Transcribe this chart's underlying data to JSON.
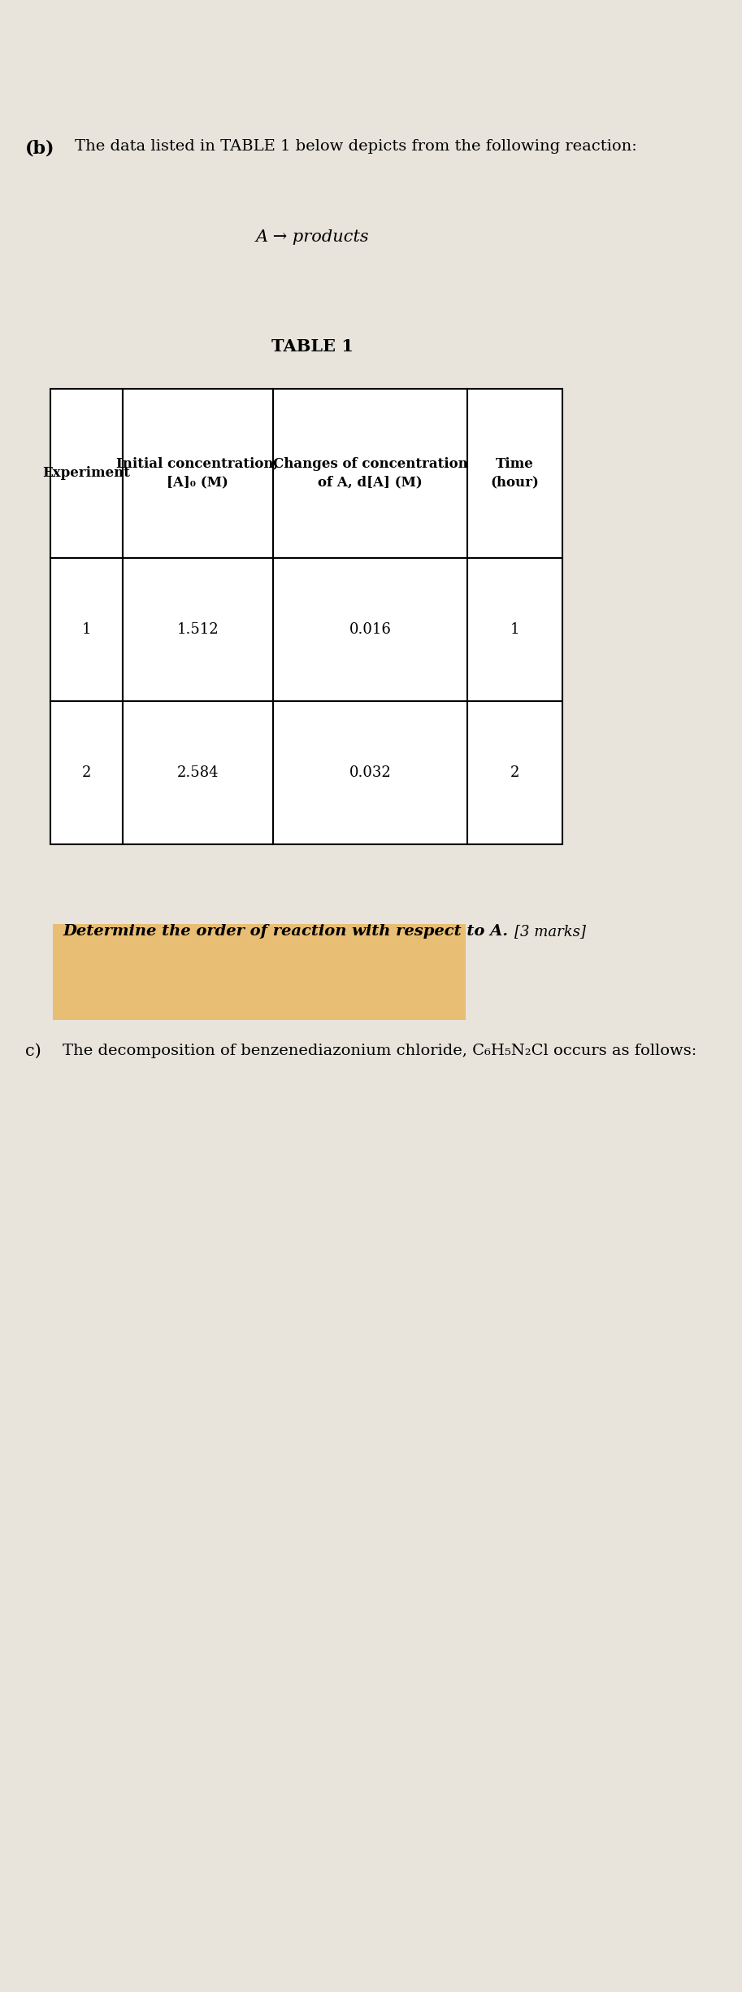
{
  "bg_color": "#d8d4cc",
  "page_bg": "#e8e4dc",
  "part_label": "(b)",
  "intro_text": "The data listed in TABLE 1 below depicts from the following reaction:",
  "reaction_line1": "A → products",
  "table_title": "TABLE 1",
  "table_headers": [
    "Experiment",
    "Initial concentration,\n[A]₀ (M)",
    "Changes of concentration\nof A, d[A] (M)",
    "Time\n(hour)"
  ],
  "table_rows": [
    [
      "1",
      "1.512",
      "0.016",
      "1"
    ],
    [
      "2",
      "2.584",
      "0.032",
      "2"
    ]
  ],
  "question_text": "Determine the order of reaction with respect to A.",
  "marks_text": "[3 marks]",
  "highlight_color": "#e8a020",
  "highlight_alpha": 0.55,
  "part_c_label": "c)",
  "part_c_text": "The decomposition of benzenediazonium chloride, C₆H₅N₂Cl occurs as follows:"
}
